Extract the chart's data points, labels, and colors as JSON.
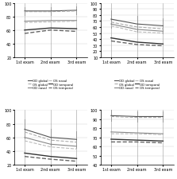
{
  "panels": [
    {
      "ylim": [
        20,
        100
      ],
      "yticks": [
        20,
        40,
        60,
        80,
        100
      ],
      "lines": [
        {
          "label": "OD global",
          "style": "solid",
          "color": "#555555",
          "linewidth": 0.8,
          "values": [
            88,
            88,
            89
          ]
        },
        {
          "label": "OS global",
          "style": "dashed",
          "color": "#aaaaaa",
          "linewidth": 0.8,
          "values": [
            87,
            87,
            88
          ]
        },
        {
          "label": "OD nasal",
          "style": "solid",
          "color": "#888888",
          "linewidth": 0.8,
          "values": [
            73,
            74,
            74
          ]
        },
        {
          "label": "OS nasal",
          "style": "dashed",
          "color": "#bbbbbb",
          "linewidth": 0.8,
          "values": [
            71,
            72,
            73
          ]
        },
        {
          "label": "OD temporal",
          "style": "solid",
          "color": "#333333",
          "linewidth": 1.0,
          "values": [
            60,
            63,
            62
          ]
        },
        {
          "label": "OS temporal",
          "style": "dashed",
          "color": "#666666",
          "linewidth": 1.0,
          "values": [
            55,
            60,
            58
          ]
        }
      ],
      "errors": [
        [
          82,
          94
        ],
        [
          82,
          94
        ],
        [
          83,
          95
        ]
      ],
      "legend_cols": 2
    },
    {
      "ylim": [
        10,
        100
      ],
      "yticks": [
        10,
        20,
        30,
        40,
        50,
        60,
        70,
        80,
        90,
        100
      ],
      "lines": [
        {
          "label": "OD global",
          "style": "solid",
          "color": "#555555",
          "linewidth": 0.8,
          "values": [
            73,
            65,
            62
          ]
        },
        {
          "label": "OS global",
          "style": "dashed",
          "color": "#aaaaaa",
          "linewidth": 0.8,
          "values": [
            68,
            60,
            57
          ]
        },
        {
          "label": "OD nasal",
          "style": "solid",
          "color": "#888888",
          "linewidth": 0.8,
          "values": [
            65,
            56,
            53
          ]
        },
        {
          "label": "OS nasal",
          "style": "dashed",
          "color": "#bbbbbb",
          "linewidth": 0.8,
          "values": [
            62,
            52,
            50
          ]
        },
        {
          "label": "OD temporal",
          "style": "solid",
          "color": "#333333",
          "linewidth": 1.0,
          "values": [
            42,
            35,
            32
          ]
        },
        {
          "label": "OS temporal",
          "style": "dashed",
          "color": "#666666",
          "linewidth": 1.0,
          "values": [
            37,
            31,
            29
          ]
        }
      ],
      "errors": [
        [
          58,
          88
        ],
        [
          52,
          78
        ],
        [
          49,
          75
        ]
      ],
      "legend_cols": 2
    },
    {
      "ylim": [
        20,
        100
      ],
      "yticks": [
        20,
        40,
        60,
        80,
        100
      ],
      "lines": [
        {
          "label": "OD global",
          "style": "solid",
          "color": "#555555",
          "linewidth": 0.8,
          "values": [
            72,
            60,
            57
          ]
        },
        {
          "label": "OS global",
          "style": "dashed",
          "color": "#aaaaaa",
          "linewidth": 0.8,
          "values": [
            68,
            56,
            53
          ]
        },
        {
          "label": "OD nasal",
          "style": "solid",
          "color": "#888888",
          "linewidth": 0.8,
          "values": [
            60,
            50,
            47
          ]
        },
        {
          "label": "OS nasal",
          "style": "dashed",
          "color": "#bbbbbb",
          "linewidth": 0.8,
          "values": [
            55,
            46,
            43
          ]
        },
        {
          "label": "OD temporal",
          "style": "solid",
          "color": "#333333",
          "linewidth": 1.0,
          "values": [
            37,
            32,
            29
          ]
        },
        {
          "label": "OS temporal",
          "style": "dashed",
          "color": "#666666",
          "linewidth": 1.0,
          "values": [
            32,
            28,
            25
          ]
        }
      ],
      "errors": [
        [
          58,
          86
        ],
        [
          48,
          72
        ],
        [
          45,
          69
        ]
      ],
      "legend_cols": 2
    },
    {
      "ylim": [
        40,
        100
      ],
      "yticks": [
        40,
        50,
        60,
        70,
        80,
        90,
        100
      ],
      "lines": [
        {
          "label": "OD global",
          "style": "solid",
          "color": "#555555",
          "linewidth": 0.8,
          "values": [
            94,
            93,
            93
          ]
        },
        {
          "label": "OS global",
          "style": "dashed",
          "color": "#aaaaaa",
          "linewidth": 0.8,
          "values": [
            93,
            92,
            92
          ]
        },
        {
          "label": "OD nasal",
          "style": "solid",
          "color": "#888888",
          "linewidth": 0.8,
          "values": [
            76,
            75,
            74
          ]
        },
        {
          "label": "OS nasal",
          "style": "dashed",
          "color": "#bbbbbb",
          "linewidth": 0.8,
          "values": [
            74,
            74,
            73
          ]
        },
        {
          "label": "OD temporal",
          "style": "solid",
          "color": "#333333",
          "linewidth": 1.0,
          "values": [
            68,
            67,
            66
          ]
        },
        {
          "label": "OS temporal",
          "style": "dashed",
          "color": "#666666",
          "linewidth": 1.0,
          "values": [
            65,
            65,
            64
          ]
        }
      ],
      "errors": [
        [
          88,
          100
        ],
        [
          87,
          99
        ],
        [
          87,
          99
        ]
      ],
      "legend_cols": 2
    }
  ],
  "x_labels": [
    "1st exam",
    "2nd exam",
    "3rd exam"
  ],
  "x_positions": [
    0,
    1,
    2
  ],
  "background_color": "#ffffff",
  "grid_color": "#cccccc",
  "vline_color": "#999999",
  "font_size": 3.5,
  "tick_font_size": 3.5
}
